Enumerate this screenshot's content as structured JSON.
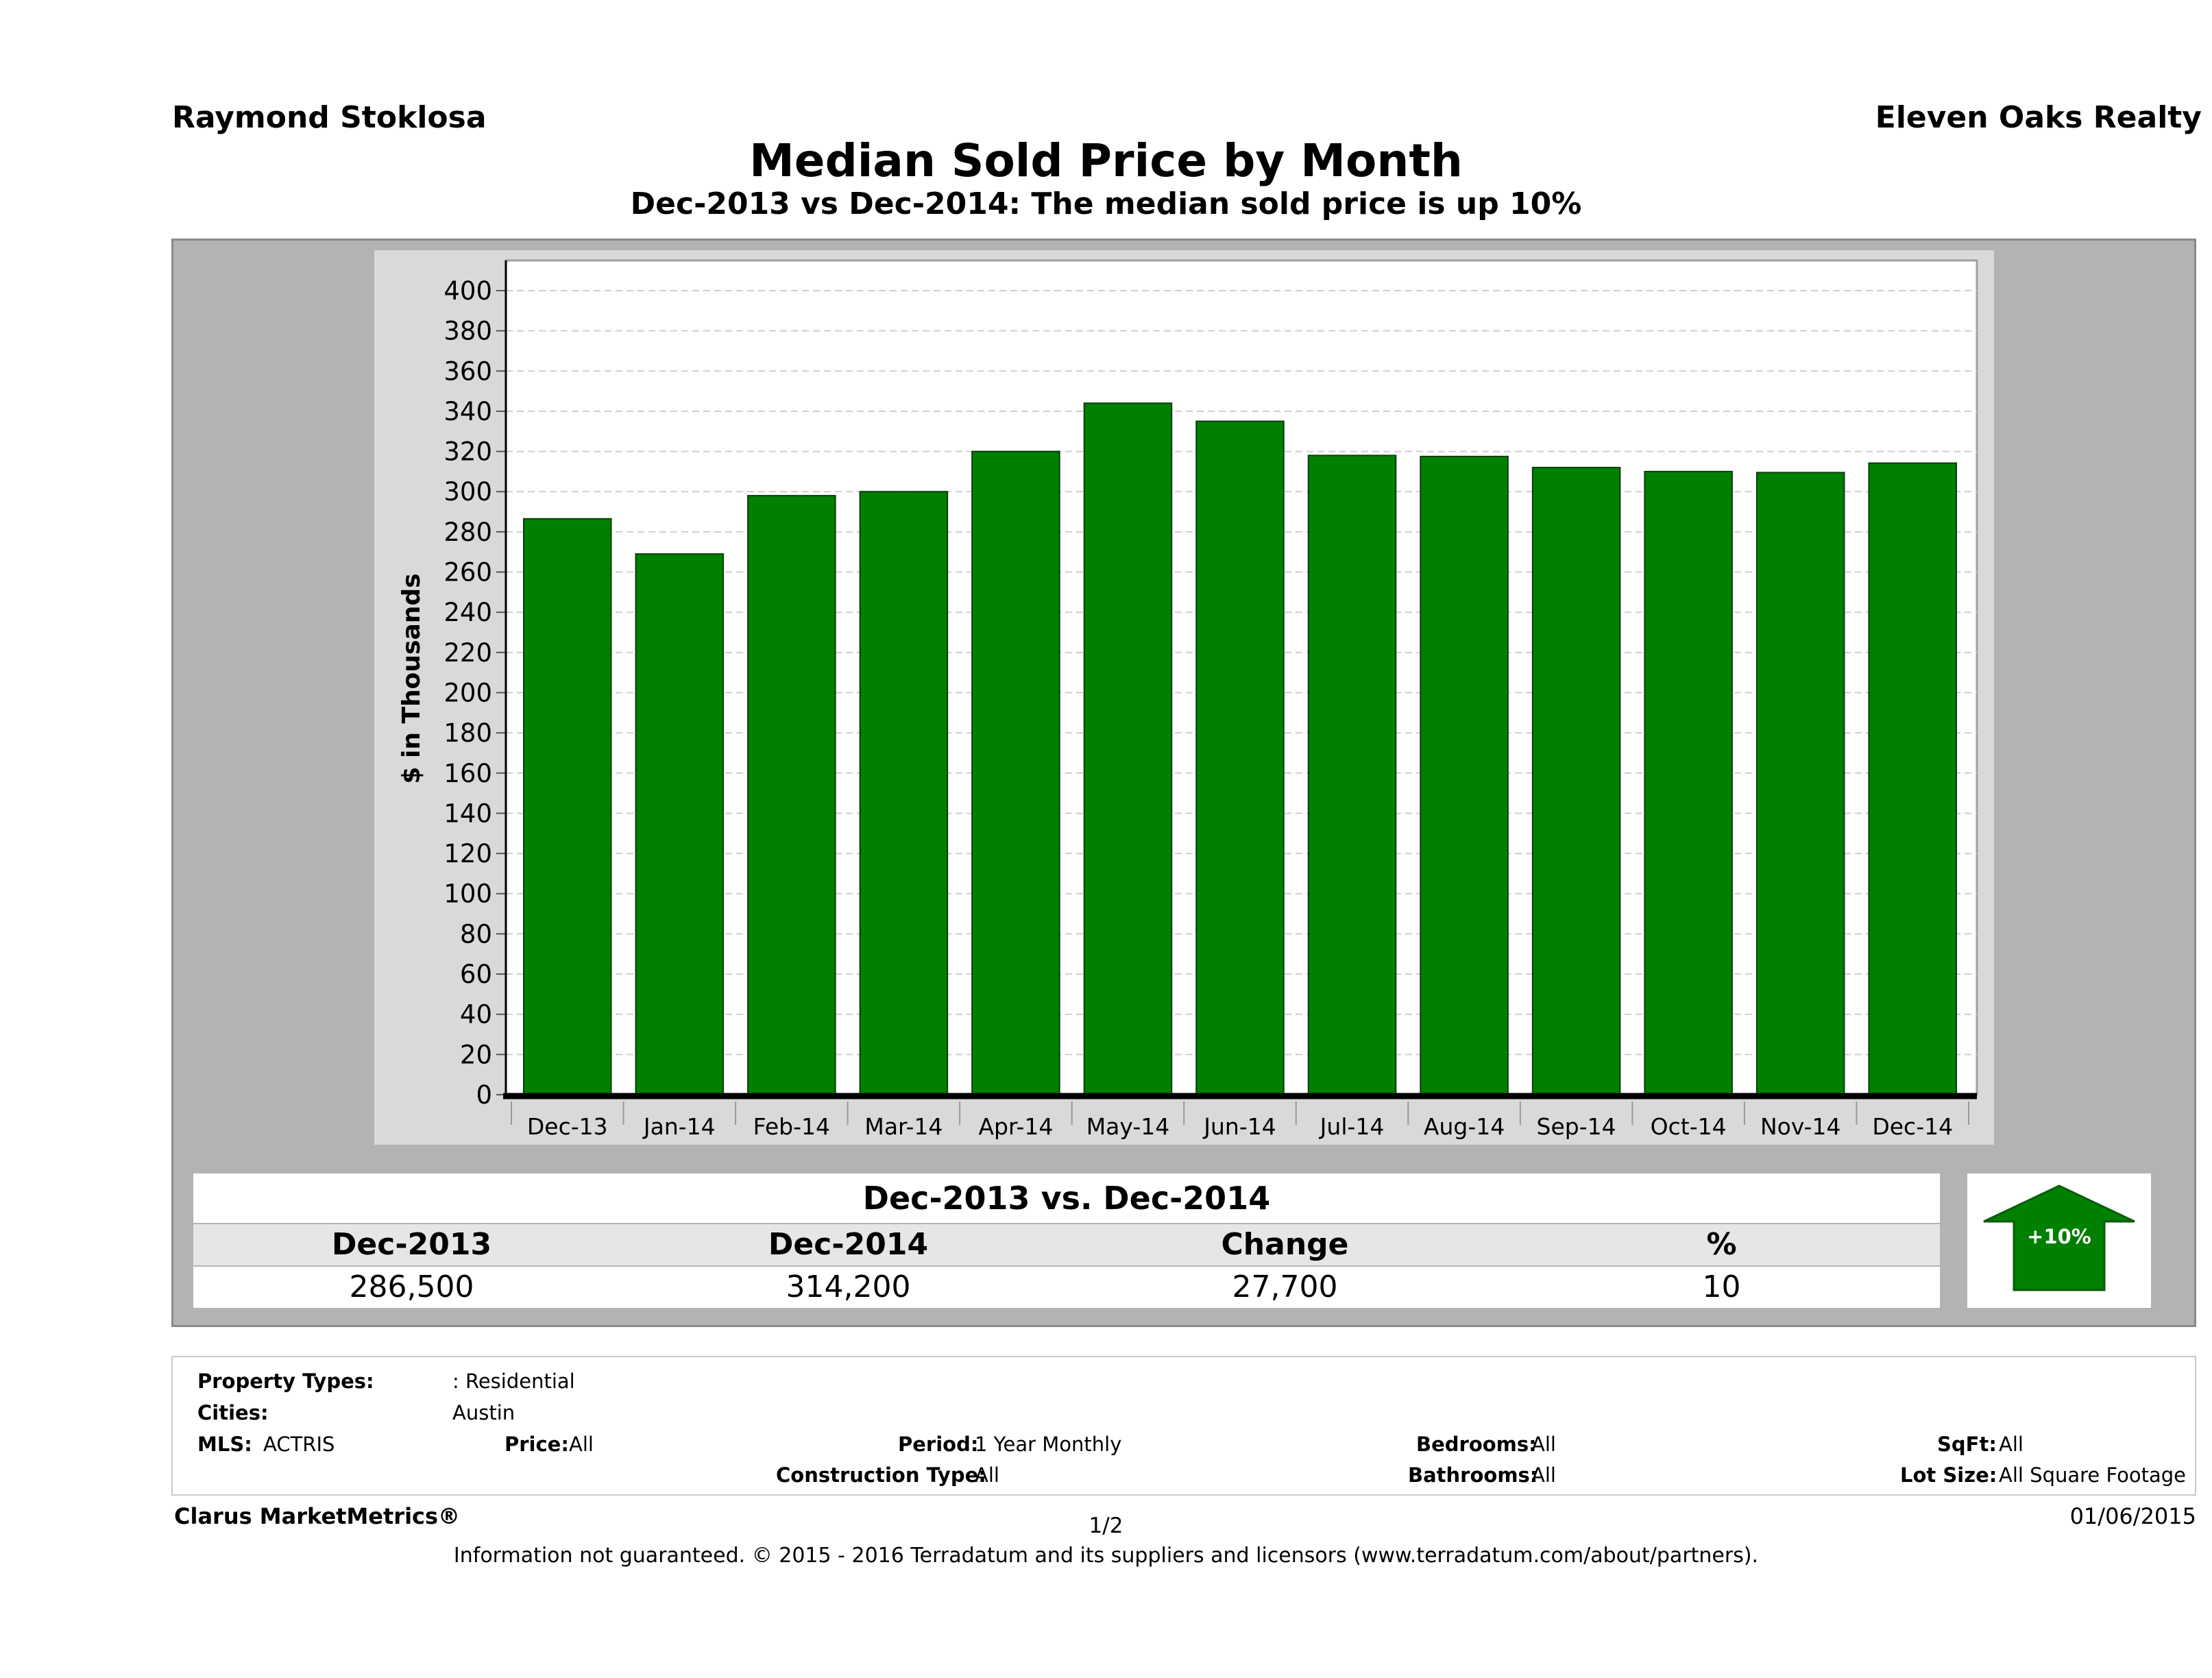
{
  "header": {
    "agent": "Raymond Stoklosa",
    "company": "Eleven Oaks Realty"
  },
  "chart_data": {
    "type": "bar",
    "title": "Median Sold Price by Month",
    "subtitle": "Dec-2013 vs Dec-2014: The median sold price is up 10%",
    "ylabel": "$ in Thousands",
    "xlabel": "",
    "ylim": [
      0,
      400
    ],
    "ytick_step": 20,
    "grid": true,
    "bar_color": "#008000",
    "categories": [
      "Dec-13",
      "Jan-14",
      "Feb-14",
      "Mar-14",
      "Apr-14",
      "May-14",
      "Jun-14",
      "Jul-14",
      "Aug-14",
      "Sep-14",
      "Oct-14",
      "Nov-14",
      "Dec-14"
    ],
    "values": [
      286.5,
      269,
      298,
      300,
      320,
      344,
      335,
      318,
      317.5,
      312,
      310,
      309.5,
      314.2
    ]
  },
  "summary": {
    "title": "Dec-2013 vs. Dec-2014",
    "headers": [
      "Dec-2013",
      "Dec-2014",
      "Change",
      "%"
    ],
    "values": [
      "286,500",
      "314,200",
      "27,700",
      "10"
    ],
    "arrow_label": "+10%",
    "arrow_color": "#008000"
  },
  "criteria": {
    "property_types_label": "Property Types:",
    "property_types_value": ": Residential",
    "cities_label": "Cities:",
    "cities_value": "Austin",
    "mls_label": "MLS:",
    "mls_value": "ACTRIS",
    "price_label": "Price:",
    "price_value": "All",
    "period_label": "Period:",
    "period_value": "1 Year Monthly",
    "construction_label": "Construction Type:",
    "construction_value": "All",
    "bedrooms_label": "Bedrooms:",
    "bedrooms_value": "All",
    "bathrooms_label": "Bathrooms:",
    "bathrooms_value": "All",
    "sqft_label": "SqFt:",
    "sqft_value": "All",
    "lotsize_label": "Lot Size:",
    "lotsize_value": "All Square Footage"
  },
  "footer": {
    "brand": "Clarus MarketMetrics®",
    "page": "1/2",
    "date": "01/06/2015",
    "note": "Information not guaranteed. © 2015 - 2016 Terradatum and its suppliers and licensors (www.terradatum.com/about/partners)."
  }
}
